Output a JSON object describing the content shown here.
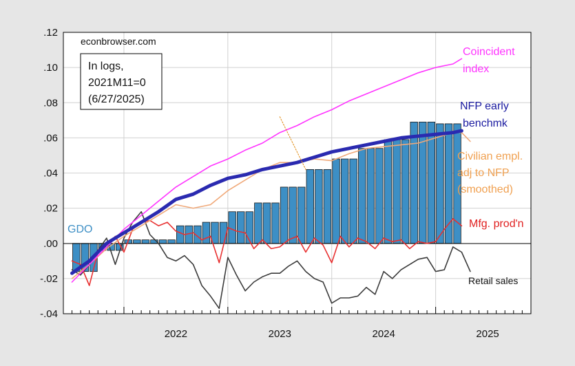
{
  "source": "econbrowser.com",
  "note": [
    "In logs,",
    "2021M11=0",
    "(6/27/2025)"
  ],
  "chart_data": {
    "type": "line",
    "x_axis": {
      "range": [
        2021.417,
        2025.917
      ],
      "tick_labels": [
        {
          "label": "2022",
          "x": 2022.0
        },
        {
          "label": "2023",
          "x": 2023.0
        },
        {
          "label": "2024",
          "x": 2024.0
        },
        {
          "label": "2025",
          "x": 2025.0
        }
      ]
    },
    "y_axis": {
      "range": [
        -0.04,
        0.12
      ],
      "tick_labels": [
        {
          "label": ".12",
          "v": 0.12
        },
        {
          "label": ".10",
          "v": 0.1
        },
        {
          "label": ".08",
          "v": 0.08
        },
        {
          "label": ".06",
          "v": 0.06
        },
        {
          "label": ".04",
          "v": 0.04
        },
        {
          "label": ".02",
          "v": 0.02
        },
        {
          "label": ".00",
          "v": 0.0
        },
        {
          "label": "-.02",
          "v": -0.02
        },
        {
          "label": "-.04",
          "v": -0.04
        }
      ]
    },
    "grid": true,
    "series": [
      {
        "name": "GDO",
        "kind": "bar",
        "color": "#3d8fc5",
        "bars": [
          {
            "start": 2021.5,
            "end": 2021.75,
            "value": -0.016
          },
          {
            "start": 2021.75,
            "end": 2022.0,
            "value": -0.004
          },
          {
            "start": 2022.0,
            "end": 2022.25,
            "value": 0.002
          },
          {
            "start": 2022.25,
            "end": 2022.5,
            "value": 0.002
          },
          {
            "start": 2022.5,
            "end": 2022.75,
            "value": 0.01
          },
          {
            "start": 2022.75,
            "end": 2023.0,
            "value": 0.012
          },
          {
            "start": 2023.0,
            "end": 2023.25,
            "value": 0.018
          },
          {
            "start": 2023.25,
            "end": 2023.5,
            "value": 0.023
          },
          {
            "start": 2023.5,
            "end": 2023.75,
            "value": 0.032
          },
          {
            "start": 2023.75,
            "end": 2024.0,
            "value": 0.042
          },
          {
            "start": 2024.0,
            "end": 2024.25,
            "value": 0.048
          },
          {
            "start": 2024.25,
            "end": 2024.5,
            "value": 0.054
          },
          {
            "start": 2024.5,
            "end": 2024.75,
            "value": 0.059
          },
          {
            "start": 2024.75,
            "end": 2025.0,
            "value": 0.069
          },
          {
            "start": 2025.0,
            "end": 2025.25,
            "value": 0.068
          }
        ]
      },
      {
        "name": "Coincident index",
        "kind": "line",
        "color": "#ff33ff",
        "points": [
          [
            2021.5,
            -0.022
          ],
          [
            2021.667,
            -0.012
          ],
          [
            2021.833,
            -0.002
          ],
          [
            2022.0,
            0.008
          ],
          [
            2022.167,
            0.016
          ],
          [
            2022.333,
            0.024
          ],
          [
            2022.5,
            0.032
          ],
          [
            2022.667,
            0.038
          ],
          [
            2022.833,
            0.044
          ],
          [
            2023.0,
            0.048
          ],
          [
            2023.167,
            0.053
          ],
          [
            2023.333,
            0.057
          ],
          [
            2023.5,
            0.063
          ],
          [
            2023.667,
            0.067
          ],
          [
            2023.833,
            0.072
          ],
          [
            2024.0,
            0.076
          ],
          [
            2024.167,
            0.081
          ],
          [
            2024.333,
            0.085
          ],
          [
            2024.5,
            0.089
          ],
          [
            2024.667,
            0.093
          ],
          [
            2024.833,
            0.097
          ],
          [
            2025.0,
            0.1
          ],
          [
            2025.167,
            0.102
          ],
          [
            2025.25,
            0.105
          ]
        ]
      },
      {
        "name": "NFP early benchmk",
        "kind": "line",
        "color": "#2a2ab0",
        "points": [
          [
            2021.5,
            -0.017
          ],
          [
            2021.667,
            -0.01
          ],
          [
            2021.833,
            0.0
          ],
          [
            2022.0,
            0.006
          ],
          [
            2022.167,
            0.012
          ],
          [
            2022.333,
            0.018
          ],
          [
            2022.5,
            0.025
          ],
          [
            2022.667,
            0.028
          ],
          [
            2022.833,
            0.033
          ],
          [
            2023.0,
            0.037
          ],
          [
            2023.167,
            0.039
          ],
          [
            2023.333,
            0.042
          ],
          [
            2023.5,
            0.044
          ],
          [
            2023.667,
            0.046
          ],
          [
            2023.833,
            0.049
          ],
          [
            2024.0,
            0.052
          ],
          [
            2024.167,
            0.054
          ],
          [
            2024.333,
            0.056
          ],
          [
            2024.5,
            0.058
          ],
          [
            2024.667,
            0.06
          ],
          [
            2024.833,
            0.061
          ],
          [
            2025.0,
            0.062
          ],
          [
            2025.167,
            0.063
          ],
          [
            2025.25,
            0.064
          ]
        ]
      },
      {
        "name": "Civilian empl. adj to NFP (smoothed)",
        "kind": "line",
        "color": "#f0a878",
        "points": [
          [
            2021.5,
            -0.02
          ],
          [
            2021.667,
            -0.012
          ],
          [
            2021.833,
            -0.003
          ],
          [
            2022.0,
            0.004
          ],
          [
            2022.167,
            0.01
          ],
          [
            2022.333,
            0.016
          ],
          [
            2022.5,
            0.022
          ],
          [
            2022.667,
            0.02
          ],
          [
            2022.833,
            0.022
          ],
          [
            2023.0,
            0.03
          ],
          [
            2023.167,
            0.036
          ],
          [
            2023.333,
            0.042
          ],
          [
            2023.5,
            0.046
          ],
          [
            2023.667,
            0.046
          ],
          [
            2023.833,
            0.048
          ],
          [
            2024.0,
            0.047
          ],
          [
            2024.167,
            0.051
          ],
          [
            2024.333,
            0.054
          ],
          [
            2024.5,
            0.055
          ],
          [
            2024.667,
            0.056
          ],
          [
            2024.833,
            0.057
          ],
          [
            2025.0,
            0.06
          ],
          [
            2025.167,
            0.063
          ],
          [
            2025.25,
            0.063
          ],
          [
            2025.333,
            0.058
          ]
        ]
      },
      {
        "name": "Mfg. prod'n",
        "kind": "line",
        "color": "#e83030",
        "points": [
          [
            2021.5,
            -0.01
          ],
          [
            2021.583,
            -0.012
          ],
          [
            2021.667,
            -0.024
          ],
          [
            2021.75,
            -0.005
          ],
          [
            2021.833,
            -0.001
          ],
          [
            2021.917,
            0.004
          ],
          [
            2022.0,
            -0.005
          ],
          [
            2022.083,
            0.008
          ],
          [
            2022.167,
            0.012
          ],
          [
            2022.25,
            0.013
          ],
          [
            2022.333,
            0.01
          ],
          [
            2022.417,
            0.012
          ],
          [
            2022.5,
            0.007
          ],
          [
            2022.583,
            0.005
          ],
          [
            2022.667,
            0.006
          ],
          [
            2022.75,
            0.002
          ],
          [
            2022.833,
            0.004
          ],
          [
            2022.917,
            -0.011
          ],
          [
            2023.0,
            0.009
          ],
          [
            2023.083,
            0.007
          ],
          [
            2023.167,
            0.006
          ],
          [
            2023.25,
            -0.003
          ],
          [
            2023.333,
            0.002
          ],
          [
            2023.417,
            -0.003
          ],
          [
            2023.5,
            -0.002
          ],
          [
            2023.583,
            0.002
          ],
          [
            2023.667,
            0.004
          ],
          [
            2023.75,
            -0.005
          ],
          [
            2023.833,
            0.003
          ],
          [
            2023.917,
            -0.001
          ],
          [
            2024.0,
            -0.011
          ],
          [
            2024.083,
            0.004
          ],
          [
            2024.167,
            -0.002
          ],
          [
            2024.25,
            0.003
          ],
          [
            2024.333,
            0.001
          ],
          [
            2024.417,
            -0.003
          ],
          [
            2024.5,
            0.003
          ],
          [
            2024.583,
            0.001
          ],
          [
            2024.667,
            0.002
          ],
          [
            2024.75,
            -0.003
          ],
          [
            2024.833,
            0.001
          ],
          [
            2024.917,
            0.0
          ],
          [
            2025.0,
            0.001
          ],
          [
            2025.083,
            0.008
          ],
          [
            2025.167,
            0.014
          ],
          [
            2025.25,
            0.01
          ]
        ]
      },
      {
        "name": "Retail sales",
        "kind": "line",
        "color": "#3a3a3a",
        "points": [
          [
            2021.5,
            -0.015
          ],
          [
            2021.583,
            -0.018
          ],
          [
            2021.667,
            -0.012
          ],
          [
            2021.75,
            -0.004
          ],
          [
            2021.833,
            0.003
          ],
          [
            2021.917,
            -0.012
          ],
          [
            2022.0,
            0.003
          ],
          [
            2022.083,
            0.012
          ],
          [
            2022.167,
            0.018
          ],
          [
            2022.25,
            0.005
          ],
          [
            2022.333,
            0.0
          ],
          [
            2022.417,
            -0.008
          ],
          [
            2022.5,
            -0.01
          ],
          [
            2022.583,
            -0.007
          ],
          [
            2022.667,
            -0.012
          ],
          [
            2022.75,
            -0.024
          ],
          [
            2022.833,
            -0.03
          ],
          [
            2022.917,
            -0.037
          ],
          [
            2023.0,
            -0.008
          ],
          [
            2023.083,
            -0.018
          ],
          [
            2023.167,
            -0.027
          ],
          [
            2023.25,
            -0.022
          ],
          [
            2023.333,
            -0.019
          ],
          [
            2023.417,
            -0.017
          ],
          [
            2023.5,
            -0.017
          ],
          [
            2023.583,
            -0.013
          ],
          [
            2023.667,
            -0.01
          ],
          [
            2023.75,
            -0.016
          ],
          [
            2023.833,
            -0.02
          ],
          [
            2023.917,
            -0.022
          ],
          [
            2024.0,
            -0.034
          ],
          [
            2024.083,
            -0.031
          ],
          [
            2024.167,
            -0.031
          ],
          [
            2024.25,
            -0.03
          ],
          [
            2024.333,
            -0.025
          ],
          [
            2024.417,
            -0.029
          ],
          [
            2024.5,
            -0.016
          ],
          [
            2024.583,
            -0.02
          ],
          [
            2024.667,
            -0.015
          ],
          [
            2024.75,
            -0.012
          ],
          [
            2024.833,
            -0.009
          ],
          [
            2024.917,
            -0.008
          ],
          [
            2025.0,
            -0.016
          ],
          [
            2025.083,
            -0.015
          ],
          [
            2025.167,
            -0.002
          ],
          [
            2025.25,
            -0.005
          ],
          [
            2025.333,
            -0.016
          ]
        ]
      },
      {
        "name": "",
        "kind": "line",
        "color": "#e08a10",
        "dashed": true,
        "points": [
          [
            2023.5,
            0.072
          ],
          [
            2023.75,
            0.042
          ]
        ]
      }
    ]
  },
  "labels": {
    "gdo": "GDO",
    "coincident": [
      "Coincident",
      "index"
    ],
    "nfp": [
      "NFP early",
      "benchmk"
    ],
    "civilian": [
      "Civilian empl.",
      "adj to NFP",
      "(smoothed)"
    ],
    "mfg": "Mfg. prod'n",
    "retail": "Retail sales"
  },
  "colors": {
    "background": "#e6e6e6",
    "plot_bg": "#ffffff",
    "grid": "#d0d0d0"
  }
}
